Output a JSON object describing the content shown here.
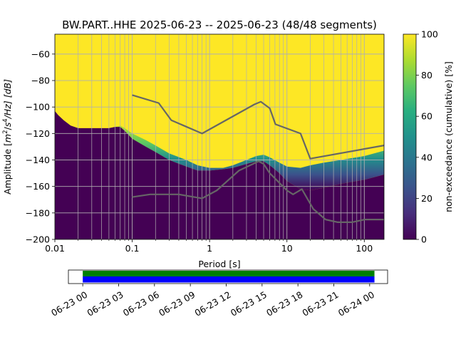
{
  "title": "BW.PART..HHE   2025-06-23 -- 2025-06-23  (48/48 segments)",
  "colors": {
    "fill_top": "#fde725",
    "fill_bottom": "#440154",
    "grid": "#b0b0b0",
    "lines": "#666666",
    "coverage_green": "#008000",
    "coverage_blue": "#0000ff"
  },
  "chart_data": [
    {
      "type": "heatmap",
      "name": "probabilistic-power-spectral-density",
      "title": "BW.PART..HHE   2025-06-23 -- 2025-06-23  (48/48 segments)",
      "xlabel": "Period [s]",
      "ylabel": "Amplitude [m²/s⁴/Hz] [dB]",
      "ylabel_parts": {
        "prefix": "Amplitude [",
        "m": "m",
        "exp2": "2",
        "slash": "/",
        "s": "s",
        "exp4": "4",
        "rest": "/Hz] [dB]"
      },
      "xscale": "log",
      "xlim": [
        0.01,
        180
      ],
      "ylim": [
        -200,
        -45
      ],
      "xticks": [
        0.01,
        0.1,
        1,
        10,
        100
      ],
      "xtick_labels": [
        "0.01",
        "0.1",
        "1",
        "10",
        "100"
      ],
      "yticks": [
        -200,
        -180,
        -160,
        -140,
        -120,
        -100,
        -80,
        -60
      ],
      "ytick_labels": [
        "−200",
        "−180",
        "−160",
        "−140",
        "−120",
        "−100",
        "−80",
        "−60"
      ],
      "grid": true,
      "colorbar": {
        "label": "non-exceedance (cumulative) [%]",
        "range": [
          0,
          100
        ],
        "ticks": [
          0,
          20,
          40,
          60,
          80,
          100
        ],
        "tick_labels": [
          "0",
          "20",
          "40",
          "60",
          "80",
          "100"
        ],
        "colormap": "viridis"
      },
      "psd_boundary": {
        "period": [
          0.01,
          0.011,
          0.013,
          0.016,
          0.02,
          0.025,
          0.03,
          0.04,
          0.05,
          0.06,
          0.07,
          0.08,
          0.1,
          0.15,
          0.2,
          0.3,
          0.5,
          0.7,
          1.0,
          1.5,
          2.0,
          3.0,
          4.0,
          5.0,
          6.0,
          8.0,
          10.0,
          15.0,
          20.0,
          30.0,
          50.0,
          100.0,
          180.0
        ],
        "db_low": [
          -103,
          -106,
          -110,
          -114,
          -116,
          -116,
          -116,
          -116,
          -116,
          -115,
          -114,
          -116,
          -120,
          -125,
          -129,
          -135,
          -140,
          -144,
          -146,
          -146,
          -144,
          -140,
          -137,
          -136,
          -138,
          -142,
          -145,
          -146,
          -144,
          -142,
          -140,
          -137,
          -133
        ],
        "db_high": [
          -103,
          -106,
          -110,
          -114,
          -116,
          -116,
          -116,
          -116,
          -116,
          -115,
          -115,
          -118,
          -124,
          -130,
          -134,
          -140,
          -145,
          -148,
          -148,
          -147,
          -146,
          -143,
          -141,
          -141,
          -144,
          -150,
          -156,
          -162,
          -163,
          -161,
          -158,
          -155,
          -151
        ]
      },
      "reference_lines": [
        {
          "name": "noise-model-high",
          "period": [
            0.1,
            0.22,
            0.32,
            0.8,
            3.8,
            4.6,
            6.0,
            7.1,
            15.0,
            20.0,
            180.0
          ],
          "db": [
            -91,
            -97,
            -110,
            -120,
            -98,
            -96,
            -101,
            -113,
            -120,
            -139,
            -129
          ]
        },
        {
          "name": "noise-model-low",
          "period": [
            0.1,
            0.17,
            0.4,
            0.8,
            1.24,
            2.4,
            4.3,
            5.0,
            6.0,
            10.0,
            12.0,
            15.6,
            21.9,
            31.6,
            45.0,
            70.0,
            101.0,
            154.0,
            180.0
          ],
          "db": [
            -168,
            -166,
            -166,
            -169,
            -163,
            -148,
            -141,
            -143,
            -150,
            -163,
            -166,
            -162,
            -177,
            -185,
            -187,
            -187,
            -185,
            -185,
            -185
          ]
        }
      ]
    },
    {
      "type": "timeline",
      "name": "data-coverage",
      "tick_labels": [
        "06-23 00",
        "06-23 03",
        "06-23 06",
        "06-23 09",
        "06-23 12",
        "06-23 15",
        "06-23 18",
        "06-23 21",
        "06-24 00"
      ],
      "hours": [
        0,
        3,
        6,
        9,
        12,
        15,
        18,
        21,
        24
      ],
      "xlim_hours": [
        -1.2,
        25.5
      ],
      "coverage_hours": [
        0,
        24.4
      ]
    }
  ]
}
